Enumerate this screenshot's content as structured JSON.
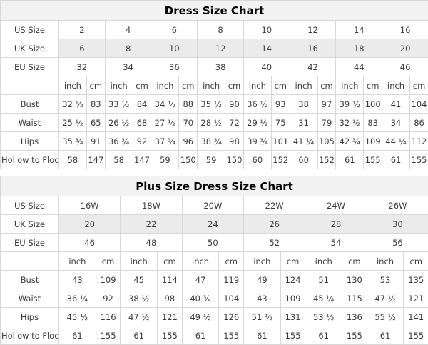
{
  "colors": {
    "cell_gray": "#ebebeb",
    "cell_white": "#ffffff",
    "title_bg": "#f2f2f2",
    "border": "#d8d8d8",
    "text": "#3b3b3b",
    "title_text": "#000000"
  },
  "chart_data": [
    {
      "type": "table",
      "title": "Dress Size Chart",
      "units": [
        "inch",
        "cm"
      ],
      "size_rows": [
        {
          "label": "US Size",
          "values": [
            "2",
            "4",
            "6",
            "8",
            "10",
            "12",
            "14",
            "16"
          ]
        },
        {
          "label": "UK Size",
          "values": [
            "6",
            "8",
            "10",
            "12",
            "14",
            "16",
            "18",
            "20"
          ]
        },
        {
          "label": "EU Size",
          "values": [
            "32",
            "34",
            "36",
            "38",
            "40",
            "42",
            "44",
            "46"
          ]
        }
      ],
      "measurement_rows": [
        {
          "label": "Bust",
          "values": [
            [
              "32 ½",
              "83"
            ],
            [
              "33 ½",
              "84"
            ],
            [
              "34 ½",
              "88"
            ],
            [
              "35 ½",
              "90"
            ],
            [
              "36 ½",
              "93"
            ],
            [
              "38",
              "97"
            ],
            [
              "39 ½",
              "100"
            ],
            [
              "41",
              "104"
            ]
          ]
        },
        {
          "label": "Waist",
          "values": [
            [
              "25 ½",
              "65"
            ],
            [
              "26 ½",
              "68"
            ],
            [
              "27 ½",
              "70"
            ],
            [
              "28 ½",
              "72"
            ],
            [
              "29 ½",
              "75"
            ],
            [
              "31",
              "79"
            ],
            [
              "32 ½",
              "83"
            ],
            [
              "34",
              "86"
            ]
          ]
        },
        {
          "label": "Hips",
          "values": [
            [
              "35 ¾",
              "91"
            ],
            [
              "36 ¾",
              "92"
            ],
            [
              "37 ¾",
              "96"
            ],
            [
              "38 ¾",
              "98"
            ],
            [
              "39 ¾",
              "101"
            ],
            [
              "41 ¼",
              "105"
            ],
            [
              "42 ¾",
              "109"
            ],
            [
              "44 ¼",
              "112"
            ]
          ]
        },
        {
          "label": "Hollow to Floor",
          "values": [
            [
              "58",
              "147"
            ],
            [
              "58",
              "147"
            ],
            [
              "59",
              "150"
            ],
            [
              "59",
              "150"
            ],
            [
              "60",
              "152"
            ],
            [
              "60",
              "152"
            ],
            [
              "61",
              "155"
            ],
            [
              "61",
              "155"
            ]
          ]
        }
      ]
    },
    {
      "type": "table",
      "title": "Plus Size Dress Size Chart",
      "units": [
        "inch",
        "cm"
      ],
      "size_rows": [
        {
          "label": "US Size",
          "values": [
            "16W",
            "18W",
            "20W",
            "22W",
            "24W",
            "26W"
          ]
        },
        {
          "label": "UK Size",
          "values": [
            "20",
            "22",
            "24",
            "26",
            "28",
            "30"
          ]
        },
        {
          "label": "EU Size",
          "values": [
            "46",
            "48",
            "50",
            "52",
            "54",
            "56"
          ]
        }
      ],
      "measurement_rows": [
        {
          "label": "Bust",
          "values": [
            [
              "43",
              "109"
            ],
            [
              "45",
              "114"
            ],
            [
              "47",
              "119"
            ],
            [
              "49",
              "124"
            ],
            [
              "51",
              "130"
            ],
            [
              "53",
              "135"
            ]
          ]
        },
        {
          "label": "Waist",
          "values": [
            [
              "36 ¼",
              "92"
            ],
            [
              "38 ½",
              "98"
            ],
            [
              "40 ¾",
              "104"
            ],
            [
              "43",
              "109"
            ],
            [
              "45 ¼",
              "115"
            ],
            [
              "47 ½",
              "121"
            ]
          ]
        },
        {
          "label": "Hips",
          "values": [
            [
              "45 ½",
              "116"
            ],
            [
              "47 ½",
              "121"
            ],
            [
              "49 ½",
              "126"
            ],
            [
              "51 ½",
              "131"
            ],
            [
              "53 ½",
              "136"
            ],
            [
              "55 ½",
              "141"
            ]
          ]
        },
        {
          "label": "Hollow to Floor",
          "values": [
            [
              "61",
              "155"
            ],
            [
              "61",
              "155"
            ],
            [
              "61",
              "155"
            ],
            [
              "61",
              "155"
            ],
            [
              "61",
              "155"
            ],
            [
              "61",
              "155"
            ]
          ]
        }
      ]
    }
  ]
}
